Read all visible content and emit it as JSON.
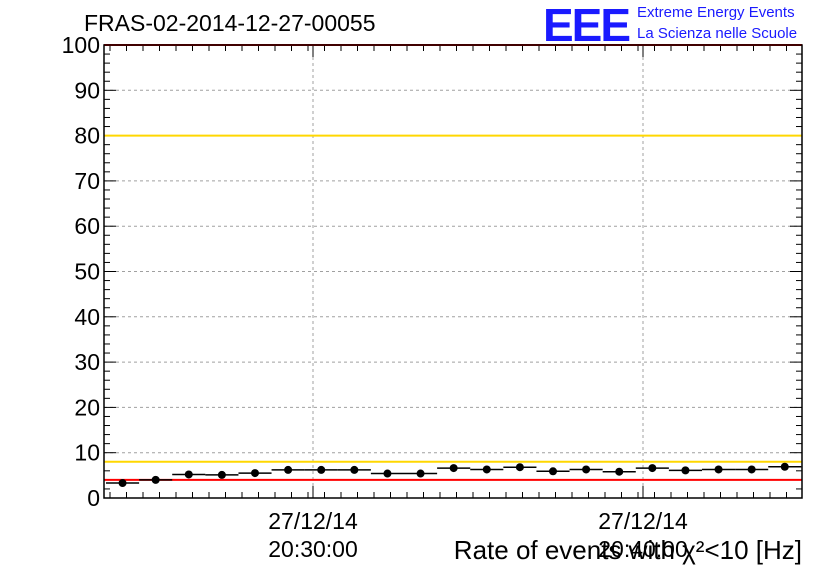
{
  "header": {
    "title": "FRAS-02-2014-12-27-00055"
  },
  "logo": {
    "mark": "EEE",
    "line1": "Extreme Energy Events",
    "line2": "La Scienza nelle Scuole",
    "color": "#1a1aff"
  },
  "colors": {
    "red_limit": "#ff0000",
    "yellow_limit": "#ffd700",
    "data": "#000000",
    "grid": "#a0a0a0"
  },
  "chart_data": {
    "type": "scatter",
    "title": "FRAS-02-2014-12-27-00055",
    "xlabel": "Rate of events with χ²<10 [Hz]",
    "ylabel": "",
    "ylim": [
      0,
      100
    ],
    "yticks": [
      0,
      10,
      20,
      30,
      40,
      50,
      60,
      70,
      80,
      90,
      100
    ],
    "xtick_labels": [
      {
        "date": "27/12/14",
        "time": "20:30:00"
      },
      {
        "date": "27/12/14",
        "time": "20:40:00"
      }
    ],
    "grid": true,
    "reference_lines": [
      {
        "y": 100,
        "color": "red"
      },
      {
        "y": 80,
        "color": "yellow"
      },
      {
        "y": 8,
        "color": "yellow"
      },
      {
        "y": 4,
        "color": "red"
      }
    ],
    "series": [
      {
        "values": [
          3.3,
          4.0,
          5.2,
          5.1,
          5.5,
          6.2,
          6.2,
          6.2,
          5.4,
          5.4,
          6.6,
          6.3,
          6.8,
          5.9,
          6.3,
          5.8,
          6.6,
          6.1,
          6.3,
          6.3,
          6.9
        ]
      }
    ]
  }
}
